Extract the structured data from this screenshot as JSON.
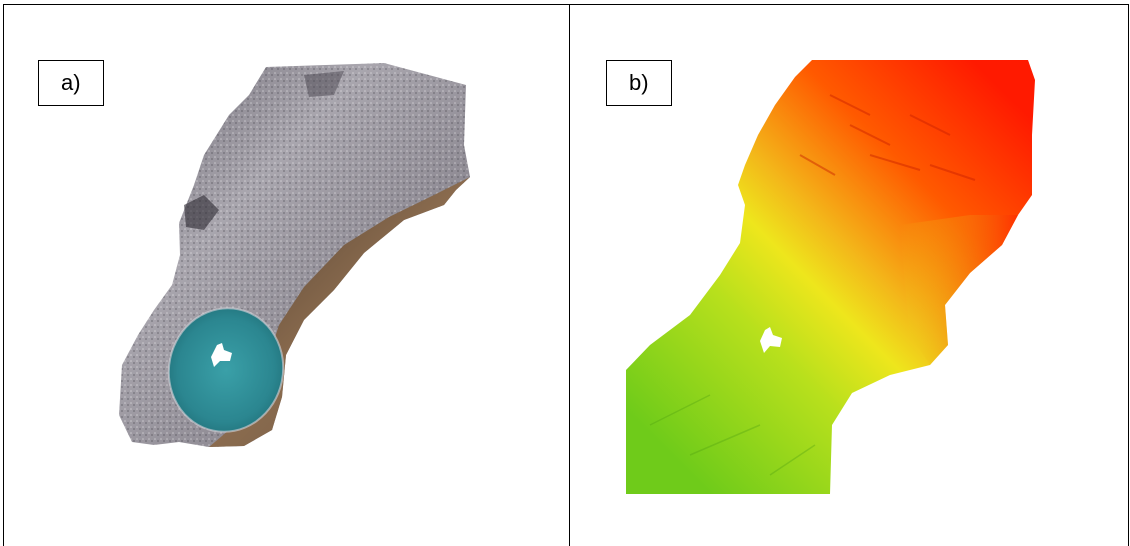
{
  "panels": [
    {
      "label": "a)"
    },
    {
      "label": "b)"
    }
  ],
  "colors": {
    "border": "#000000",
    "rock_gray": "#8a8790",
    "rock_brown": "#6e5a45",
    "lake": "#2f8a94",
    "elev_low": "#7ccf1d",
    "elev_mid": "#f0e81a",
    "elev_high": "#ff1a00"
  }
}
